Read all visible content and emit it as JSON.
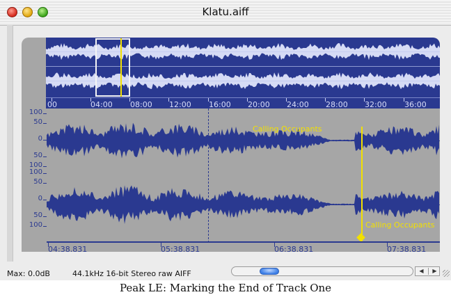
{
  "window": {
    "title": "Klatu.aiff"
  },
  "overview": {
    "time_labels": [
      "00",
      "04:00",
      "08:00",
      "12:00",
      "16:00",
      "20:00",
      "24:00",
      "28:00",
      "32:00",
      "36:00"
    ]
  },
  "amplitude_scale": {
    "labels": [
      "100",
      "50",
      "0",
      "50",
      "100",
      "100",
      "50",
      "0",
      "50",
      "100"
    ]
  },
  "detail": {
    "marker_label_top": "Calling Occupants",
    "marker_label_bottom": "Calling Occupants"
  },
  "time_ruler": {
    "labels": [
      "04:38.831",
      "05:38.831",
      "06:38.831",
      "07:38.831"
    ]
  },
  "status": {
    "max_level": "Max: 0.0dB",
    "format": "44.1kHz 16-bit Stereo raw  AIFF"
  },
  "caption": "Peak LE: Marking the End of Track One",
  "colors": {
    "waveform_bg": "#2a3990",
    "waveform": "#2a3990",
    "marker": "#f2e000",
    "panel": "#a6a6a6"
  },
  "icons": [
    "close-icon",
    "minimize-icon",
    "zoom-icon",
    "scroll-left-icon",
    "scroll-right-icon",
    "resize-grip-icon"
  ]
}
